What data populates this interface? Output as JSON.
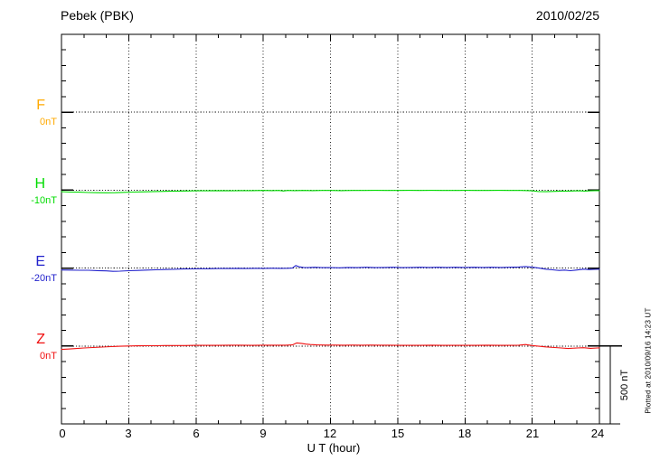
{
  "chart_data": {
    "type": "line",
    "title": "Pebek (PBK)",
    "date": "2010/02/25",
    "xlabel": "U T (hour)",
    "ylabel": "",
    "units": "nT",
    "xlim": [
      0,
      24
    ],
    "x_ticks": [
      0,
      3,
      6,
      9,
      12,
      15,
      18,
      21,
      24
    ],
    "x_tick_labels": [
      "0",
      "3",
      "6",
      "9",
      "12",
      "15",
      "18",
      "21",
      "24"
    ],
    "grid": "dotted vertical gridlines every 3 hours; dotted horizontal baseline per trace",
    "legend_position": "left baseline labels",
    "scale_bar_label": "500 nT",
    "scale_bar_nT": 500,
    "plotted_note": "Plotted at 2010/09/16 14:23 UT",
    "series": [
      {
        "name": "F",
        "baseline_label": "0nT",
        "color": "#FFAA00",
        "note": "no data trace plotted",
        "points": []
      },
      {
        "name": "H",
        "baseline_label": "-10nT",
        "color": "#00DC00",
        "points": [
          [
            0,
            -10
          ],
          [
            0.4,
            -12
          ],
          [
            0.8,
            -13
          ],
          [
            1.2,
            -15
          ],
          [
            1.6,
            -16
          ],
          [
            2,
            -17
          ],
          [
            2.4,
            -16
          ],
          [
            2.8,
            -14
          ],
          [
            3.2,
            -12
          ],
          [
            3.6,
            -11
          ],
          [
            4,
            -10
          ],
          [
            4.4,
            -8
          ],
          [
            4.8,
            -7
          ],
          [
            5.2,
            -6
          ],
          [
            5.6,
            -5
          ],
          [
            6,
            -4
          ],
          [
            6.5,
            -4
          ],
          [
            7,
            -3
          ],
          [
            7.5,
            -4
          ],
          [
            8,
            -3
          ],
          [
            8.5,
            -3
          ],
          [
            9,
            -2
          ],
          [
            9.4,
            -3
          ],
          [
            9.7,
            -2
          ],
          [
            9.9,
            -5
          ],
          [
            10.1,
            -2
          ],
          [
            10.4,
            -3
          ],
          [
            10.8,
            -2
          ],
          [
            11.2,
            -3
          ],
          [
            11.6,
            -2
          ],
          [
            12,
            -2
          ],
          [
            12.5,
            -3
          ],
          [
            13,
            -2
          ],
          [
            13.5,
            -2
          ],
          [
            14,
            -1
          ],
          [
            14.5,
            -2
          ],
          [
            15,
            -2
          ],
          [
            15.5,
            -1
          ],
          [
            16,
            -2
          ],
          [
            16.5,
            -1
          ],
          [
            17,
            -2
          ],
          [
            17.5,
            -2
          ],
          [
            18,
            -1
          ],
          [
            18.5,
            -2
          ],
          [
            19,
            -2
          ],
          [
            19.5,
            -1
          ],
          [
            20,
            -2
          ],
          [
            20.5,
            -2
          ],
          [
            21,
            -4
          ],
          [
            21.3,
            -9
          ],
          [
            21.6,
            -10
          ],
          [
            21.9,
            -8
          ],
          [
            22.2,
            -7
          ],
          [
            22.5,
            -6
          ],
          [
            22.8,
            -5
          ],
          [
            23.1,
            -4
          ],
          [
            23.35,
            -6
          ],
          [
            23.6,
            -4
          ],
          [
            23.8,
            -3
          ],
          [
            24,
            -3
          ]
        ]
      },
      {
        "name": "E",
        "baseline_label": "-20nT",
        "color": "#2222CC",
        "points": [
          [
            0,
            -12
          ],
          [
            0.4,
            -13
          ],
          [
            0.8,
            -14
          ],
          [
            1.2,
            -14
          ],
          [
            1.6,
            -16
          ],
          [
            2,
            -18
          ],
          [
            2.3,
            -21
          ],
          [
            2.6,
            -20
          ],
          [
            3,
            -17
          ],
          [
            3.4,
            -15
          ],
          [
            3.8,
            -13
          ],
          [
            4.2,
            -11
          ],
          [
            4.6,
            -9
          ],
          [
            5,
            -8
          ],
          [
            5.4,
            -6
          ],
          [
            5.8,
            -5
          ],
          [
            6.2,
            -4
          ],
          [
            6.6,
            -4
          ],
          [
            7,
            -3
          ],
          [
            7.4,
            -3
          ],
          [
            7.8,
            -2
          ],
          [
            8.2,
            -3
          ],
          [
            8.6,
            -2
          ],
          [
            9,
            -2
          ],
          [
            9.4,
            -1
          ],
          [
            9.8,
            -2
          ],
          [
            10.1,
            -1
          ],
          [
            10.3,
            0
          ],
          [
            10.45,
            16
          ],
          [
            10.6,
            8
          ],
          [
            10.8,
            4
          ],
          [
            11,
            3
          ],
          [
            11.3,
            5
          ],
          [
            11.6,
            3
          ],
          [
            12,
            3
          ],
          [
            12.4,
            2
          ],
          [
            12.8,
            4
          ],
          [
            13.2,
            3
          ],
          [
            13.6,
            5
          ],
          [
            14,
            3
          ],
          [
            14.4,
            4
          ],
          [
            14.8,
            5
          ],
          [
            15.2,
            3
          ],
          [
            15.6,
            4
          ],
          [
            16,
            5
          ],
          [
            16.4,
            4
          ],
          [
            16.8,
            5
          ],
          [
            17.2,
            4
          ],
          [
            17.6,
            5
          ],
          [
            18,
            4
          ],
          [
            18.4,
            5
          ],
          [
            18.8,
            4
          ],
          [
            19.2,
            5
          ],
          [
            19.6,
            4
          ],
          [
            20,
            5
          ],
          [
            20.4,
            7
          ],
          [
            20.7,
            10
          ],
          [
            21,
            6
          ],
          [
            21.3,
            0
          ],
          [
            21.6,
            -7
          ],
          [
            21.9,
            -11
          ],
          [
            22.2,
            -15
          ],
          [
            22.45,
            -13
          ],
          [
            22.7,
            -17
          ],
          [
            23,
            -12
          ],
          [
            23.3,
            -7
          ],
          [
            23.55,
            -10
          ],
          [
            23.8,
            -8
          ],
          [
            24,
            -7
          ]
        ]
      },
      {
        "name": "Z",
        "baseline_label": "0nT",
        "color": "#F01010",
        "points": [
          [
            0,
            -22
          ],
          [
            0.3,
            -20
          ],
          [
            0.6,
            -17
          ],
          [
            1,
            -13
          ],
          [
            1.4,
            -10
          ],
          [
            1.8,
            -7
          ],
          [
            2.2,
            -4
          ],
          [
            2.6,
            -2
          ],
          [
            3,
            0
          ],
          [
            3.4,
            1
          ],
          [
            3.8,
            2
          ],
          [
            4.2,
            2
          ],
          [
            4.6,
            3
          ],
          [
            5,
            3
          ],
          [
            5.5,
            3
          ],
          [
            6,
            4
          ],
          [
            6.5,
            4
          ],
          [
            7,
            4
          ],
          [
            7.5,
            5
          ],
          [
            8,
            5
          ],
          [
            8.5,
            4
          ],
          [
            9,
            5
          ],
          [
            9.5,
            5
          ],
          [
            10,
            5
          ],
          [
            10.3,
            7
          ],
          [
            10.5,
            20
          ],
          [
            10.7,
            17
          ],
          [
            10.9,
            12
          ],
          [
            11.1,
            9
          ],
          [
            11.4,
            7
          ],
          [
            11.8,
            6
          ],
          [
            12.2,
            6
          ],
          [
            12.6,
            5
          ],
          [
            13,
            6
          ],
          [
            13.4,
            5
          ],
          [
            13.8,
            6
          ],
          [
            14.2,
            5
          ],
          [
            14.6,
            5
          ],
          [
            15,
            4
          ],
          [
            15.5,
            4
          ],
          [
            16,
            4
          ],
          [
            16.5,
            5
          ],
          [
            17,
            4
          ],
          [
            17.5,
            4
          ],
          [
            18,
            4
          ],
          [
            18.5,
            4
          ],
          [
            19,
            5
          ],
          [
            19.5,
            4
          ],
          [
            20,
            4
          ],
          [
            20.4,
            5
          ],
          [
            20.7,
            9
          ],
          [
            21,
            3
          ],
          [
            21.3,
            -2
          ],
          [
            21.6,
            -6
          ],
          [
            22,
            -10
          ],
          [
            22.3,
            -13
          ],
          [
            22.6,
            -16
          ],
          [
            23,
            -13
          ],
          [
            23.3,
            -11
          ],
          [
            23.6,
            -15
          ],
          [
            23.9,
            -13
          ],
          [
            24,
            -12
          ]
        ]
      }
    ]
  }
}
